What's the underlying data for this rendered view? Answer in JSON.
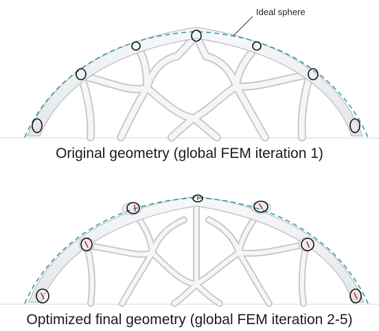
{
  "callout": {
    "label": "Ideal sphere"
  },
  "captions": {
    "top": "Original geometry (global FEM iteration 1)",
    "bottom": "Optimized final geometry (global FEM iteration 2-5)"
  },
  "colors": {
    "ideal_sphere_line": "#2f9aa8",
    "node_ring": "#111111",
    "offset_marker": "#cc2222",
    "shell": "#f1f2f3",
    "shell_edge": "#b9bcc0"
  }
}
